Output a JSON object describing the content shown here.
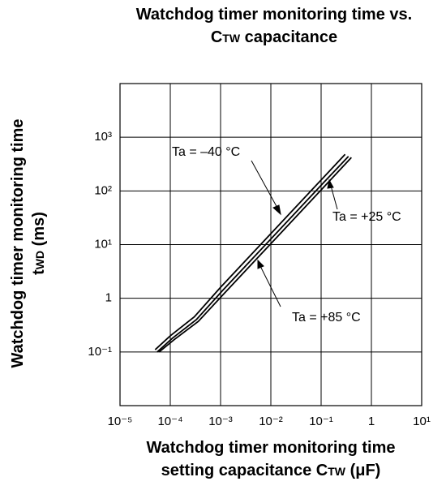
{
  "chart_data": {
    "type": "line",
    "title": {
      "line1": "Watchdog timer monitoring time vs.",
      "symbol": "C",
      "subscript": "TW",
      "rest": " capacitance"
    },
    "y_label": {
      "line1": "Watchdog timer monitoring time",
      "symbol": "t",
      "subscript": "WD",
      "rest": " (ms)"
    },
    "x_label": {
      "line1": "Watchdog timer monitoring time",
      "line2": "setting capacitance C",
      "subscript": "TW",
      "rest": " (μF)"
    },
    "xscale": "log",
    "yscale": "log",
    "grid": true,
    "xlim": [
      1e-05,
      10
    ],
    "ylim": [
      0.01,
      10000
    ],
    "xticks": [
      {
        "value": 1e-05,
        "label": "10⁻⁵"
      },
      {
        "value": 0.0001,
        "label": "10⁻⁴"
      },
      {
        "value": 0.001,
        "label": "10⁻³"
      },
      {
        "value": 0.01,
        "label": "10⁻²"
      },
      {
        "value": 0.1,
        "label": "10⁻¹"
      },
      1,
      {
        "value": 10,
        "label": "10¹"
      }
    ],
    "yticks": [
      {
        "value": 0.1,
        "label": "10⁻¹"
      },
      1,
      {
        "value": 10,
        "label": "10¹"
      },
      {
        "value": 100,
        "label": "10²"
      },
      {
        "value": 1000,
        "label": "10³"
      }
    ],
    "series": [
      {
        "name": "Ta = –40 °C",
        "color": "#000000",
        "x": [
          5e-05,
          0.0001,
          0.0003,
          0.001,
          0.01,
          0.1,
          0.3
        ],
        "values": [
          0.11,
          0.2,
          0.45,
          1.6,
          16,
          160,
          480
        ]
      },
      {
        "name": "Ta = +25 °C",
        "color": "#000000",
        "x": [
          5.5e-05,
          0.00011,
          0.00033,
          0.0011,
          0.011,
          0.11,
          0.35
        ],
        "values": [
          0.1,
          0.18,
          0.4,
          1.4,
          14,
          140,
          440
        ]
      },
      {
        "name": "Ta = +85 °C",
        "color": "#000000",
        "x": [
          6e-05,
          0.00012,
          0.00036,
          0.0012,
          0.012,
          0.12,
          0.4
        ],
        "values": [
          0.1,
          0.17,
          0.37,
          1.25,
          12.5,
          125,
          420
        ]
      }
    ]
  }
}
